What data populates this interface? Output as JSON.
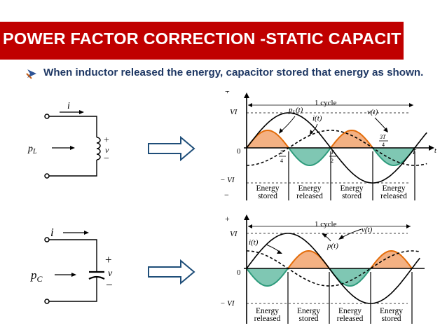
{
  "slide": {
    "title": "POWER FACTOR CORRECTION -STATIC CAPACIT",
    "bullet": "When inductor released the energy, capacitor stored that energy as shown."
  },
  "colors": {
    "title_bg": "#c00000",
    "title_text": "#ffffff",
    "bullet_text": "#1f3864",
    "power_positive_fill": "#f4b183",
    "power_negative_fill": "#7fc7b3",
    "power_curve_positive": "#e36c09",
    "power_curve_negative": "#2e9b7c"
  },
  "icons": {
    "bullet": "bullet-arrow-icon",
    "flow": "right-arrow-icon"
  },
  "inductor_circuit": {
    "current_label": "i",
    "power_label_base": "p",
    "power_label_sub": "L",
    "plus": "+",
    "voltage": "v",
    "minus": "−"
  },
  "capacitor_circuit": {
    "current_label": "i",
    "power_label_base": "p",
    "power_label_sub": "C",
    "plus": "+",
    "voltage": "v",
    "minus": "−"
  },
  "chart_data": [
    {
      "type": "line",
      "title": "",
      "cycle_label": "1 cycle",
      "axis": {
        "plus": "+",
        "minus": "−",
        "origin": "0",
        "t": "t"
      },
      "y_ticks": {
        "top": "VI",
        "bottom": "− VI"
      },
      "x_ticks": [
        {
          "num": "T",
          "den": "4"
        },
        {
          "num": "T",
          "den": "2"
        },
        {
          "num": "3T",
          "den": "4"
        }
      ],
      "x_end_tick": "T",
      "series": [
        {
          "name": "p_L(t)",
          "label_html": "p_L(t)",
          "function": "0.5*sin(2x)"
        },
        {
          "name": "i(t)",
          "function": "-0.5*cos(x)"
        },
        {
          "name": "v(t)",
          "function": "sin(x)"
        }
      ],
      "labels": {
        "p": "p",
        "p_sub": "L",
        "p_tail": "(t)",
        "i": "i(t)",
        "v": "v(t)"
      },
      "regions": [
        "Energy stored",
        "Energy released",
        "Energy stored",
        "Energy released"
      ]
    },
    {
      "type": "line",
      "title": "",
      "cycle_label": "1 cycle",
      "axis": {
        "plus": "+",
        "minus": "−",
        "origin": "0"
      },
      "y_ticks": {
        "top": "VI",
        "bottom": "− VI"
      },
      "series": [
        {
          "name": "p(t)",
          "function": "-0.5*sin(2x)"
        },
        {
          "name": "i(t)",
          "function": "0.5*cos(x)"
        },
        {
          "name": "v(t)",
          "function": "sin(x)"
        }
      ],
      "labels": {
        "i": "i(t)",
        "v": "v(t)",
        "p": "p(t)"
      },
      "regions": [
        "Energy released",
        "Energy stored",
        "Energy released",
        "Energy stored"
      ]
    }
  ]
}
